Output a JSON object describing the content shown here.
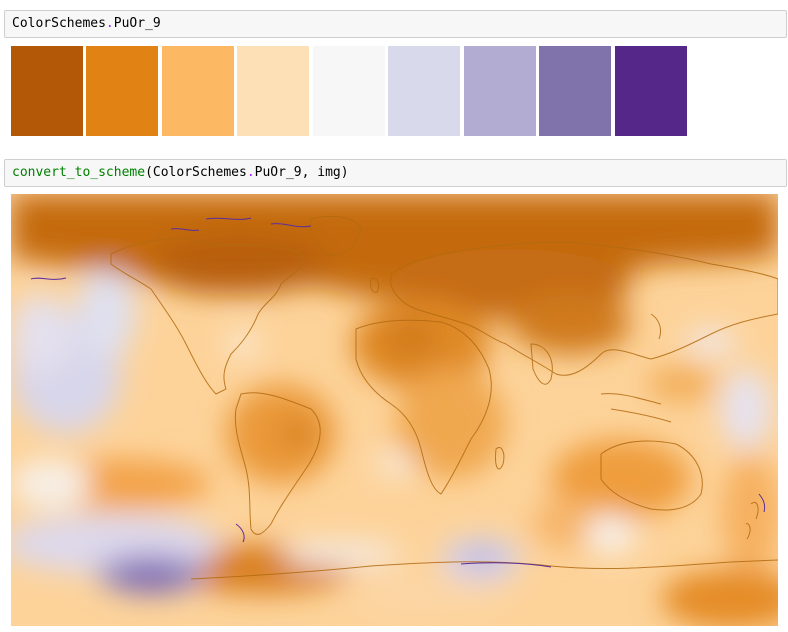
{
  "cell1": {
    "prefix": "ColorSchemes",
    "dot": ".",
    "name": "PuOr_9"
  },
  "palette": {
    "name": "PuOr_9",
    "colors": [
      "#b35806",
      "#e08214",
      "#fdb863",
      "#fee0b6",
      "#f7f7f7",
      "#d8daeb",
      "#b2abd2",
      "#8073ac",
      "#542788"
    ]
  },
  "cell2": {
    "fn": "convert_to_scheme",
    "open": "(",
    "arg_prefix": "ColorSchemes",
    "dot": ".",
    "arg_name": "PuOr_9",
    "rest": ", img)"
  },
  "map": {
    "description_icon": "world-temperature-map",
    "ocean_color": "#fdd39a",
    "land_outline_color": "#b36a10",
    "antarctic_line_color": "#5a2d9c"
  }
}
